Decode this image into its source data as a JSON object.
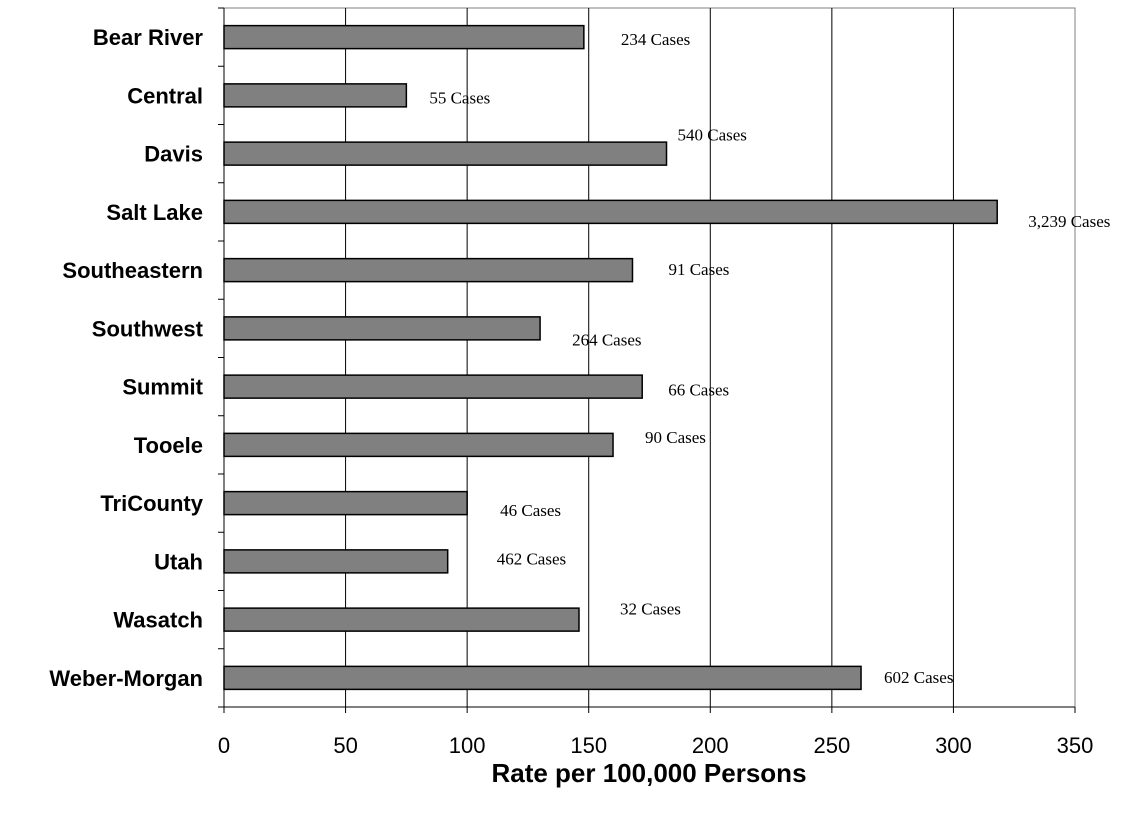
{
  "chart_data": {
    "type": "bar",
    "orientation": "horizontal",
    "categories": [
      "Bear River",
      "Central",
      "Davis",
      "Salt Lake",
      "Southeastern",
      "Southwest",
      "Summit",
      "Tooele",
      "TriCounty",
      "Utah",
      "Wasatch",
      "Weber-Morgan"
    ],
    "values": [
      148,
      75,
      182,
      318,
      168,
      130,
      172,
      160,
      100,
      92,
      146,
      262
    ],
    "data_labels": [
      "234 Cases",
      "55 Cases",
      "540 Cases",
      "3,239 Cases",
      "91 Cases",
      "264 Cases",
      "66 Cases",
      "90 Cases",
      "46 Cases",
      "462 Cases",
      "32 Cases",
      "602 Cases"
    ],
    "title": "",
    "xlabel": "Rate per 100,000 Persons",
    "ylabel": "",
    "xlim": [
      0,
      350
    ],
    "xticks": [
      0,
      50,
      100,
      150,
      200,
      250,
      300,
      350
    ],
    "xtick_labels": [
      "0",
      "50",
      "100",
      "150",
      "200",
      "250",
      "300",
      "350"
    ],
    "grid": "vertical",
    "legend": "none",
    "bar_color": "#808080"
  }
}
